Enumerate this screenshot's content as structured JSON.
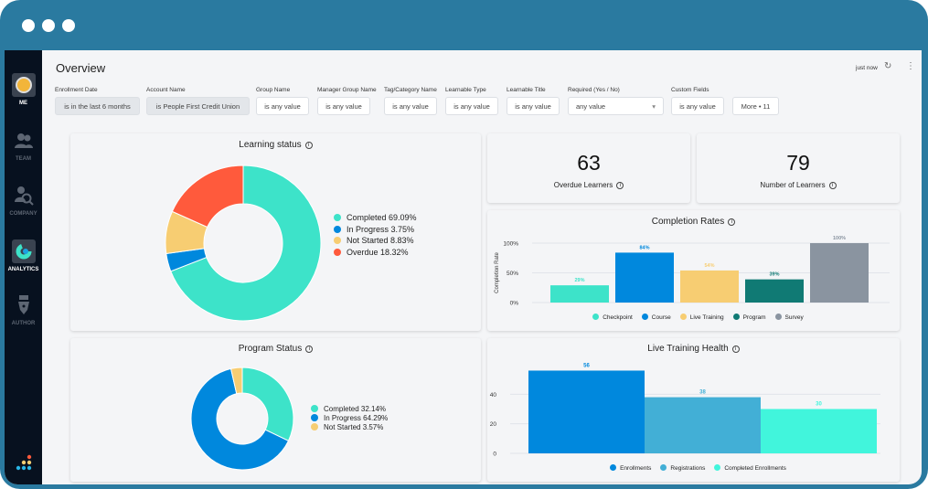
{
  "window": {
    "dots": 3
  },
  "sidebar": {
    "items": [
      {
        "label": "ME",
        "icon": "avatar-icon",
        "active": false
      },
      {
        "label": "TEAM",
        "icon": "team-icon",
        "active": false
      },
      {
        "label": "COMPANY",
        "icon": "company-search-icon",
        "active": false
      },
      {
        "label": "ANALYTICS",
        "icon": "analytics-icon",
        "active": true
      },
      {
        "label": "AUTHOR",
        "icon": "pen-nib-icon",
        "active": false
      }
    ]
  },
  "header": {
    "title": "Overview",
    "updated": "just now",
    "refresh_icon": "refresh-icon",
    "more_icon": "kebab-icon"
  },
  "filters": [
    {
      "label": "Enrollment Date",
      "value": "is in the last 6 months"
    },
    {
      "label": "Account Name",
      "value": "is People First Credit Union"
    },
    {
      "label": "Group Name",
      "value": "is any value"
    },
    {
      "label": "Manager Group Name",
      "value": "is any value"
    },
    {
      "label": "Tag/Category Name",
      "value": "is any value"
    },
    {
      "label": "Learnable Type",
      "value": "is any value"
    },
    {
      "label": "Learnable Title",
      "value": "is any value"
    },
    {
      "label": "Required (Yes / No)",
      "value": "any value"
    },
    {
      "label": "Custom Fields",
      "value": "is any value"
    },
    {
      "label": "",
      "value": "More • 11"
    }
  ],
  "colors": {
    "teal": "#3de3c9",
    "blue": "#0088dd",
    "yellow": "#f7cd72",
    "red": "#ff5a3c",
    "darkteal": "#107a74",
    "gray": "#8a94a0",
    "lightblue": "#42afd6",
    "aqua": "#41f5dc"
  },
  "kpis": [
    {
      "value": "63",
      "label": "Overdue Learners"
    },
    {
      "value": "79",
      "label": "Number of Learners"
    }
  ],
  "chart_data": [
    {
      "type": "pie",
      "title": "Learning status",
      "donut": true,
      "slices": [
        {
          "name": "Completed",
          "value": 69.09,
          "label": "Completed 69.09%",
          "color": "#3de3c9"
        },
        {
          "name": "In Progress",
          "value": 3.75,
          "label": "In Progress 3.75%",
          "color": "#0088dd"
        },
        {
          "name": "Not Started",
          "value": 8.83,
          "label": "Not Started 8.83%",
          "color": "#f7cd72"
        },
        {
          "name": "Overdue",
          "value": 18.32,
          "label": "Overdue 18.32%",
          "color": "#ff5a3c"
        }
      ],
      "legend": "right"
    },
    {
      "type": "bar",
      "title": "Completion Rates",
      "ylabel": "Completion Rate",
      "ylim": [
        0,
        100
      ],
      "yticks": [
        "0%",
        "50%",
        "100%"
      ],
      "grid": true,
      "categories": [
        "Checkpoint",
        "Course",
        "Live Training",
        "Program",
        "Survey"
      ],
      "values": [
        29,
        84,
        54,
        39,
        100
      ],
      "labels": [
        "29%",
        "84%",
        "54%",
        "39%",
        "100%"
      ],
      "colors": [
        "#3de3c9",
        "#0088dd",
        "#f7cd72",
        "#107a74",
        "#8a94a0"
      ],
      "legend": "bottom"
    },
    {
      "type": "pie",
      "title": "Program Status",
      "donut": true,
      "slices": [
        {
          "name": "Completed",
          "value": 32.14,
          "label": "Completed 32.14%",
          "color": "#3de3c9"
        },
        {
          "name": "In Progress",
          "value": 64.29,
          "label": "In Progress 64.29%",
          "color": "#0088dd"
        },
        {
          "name": "Not Started",
          "value": 3.57,
          "label": "Not Started 3.57%",
          "color": "#f7cd72"
        }
      ],
      "legend": "right"
    },
    {
      "type": "bar",
      "title": "Live Training Health",
      "ylim": [
        0,
        60
      ],
      "yticks": [
        "0",
        "20",
        "40"
      ],
      "grid": true,
      "categories": [
        "Enrollments",
        "Registrations",
        "Completed Enrollments"
      ],
      "values": [
        56,
        38,
        30
      ],
      "labels": [
        "56",
        "38",
        "30"
      ],
      "colors": [
        "#0088dd",
        "#42afd6",
        "#41f5dc"
      ],
      "legend": "bottom"
    }
  ]
}
